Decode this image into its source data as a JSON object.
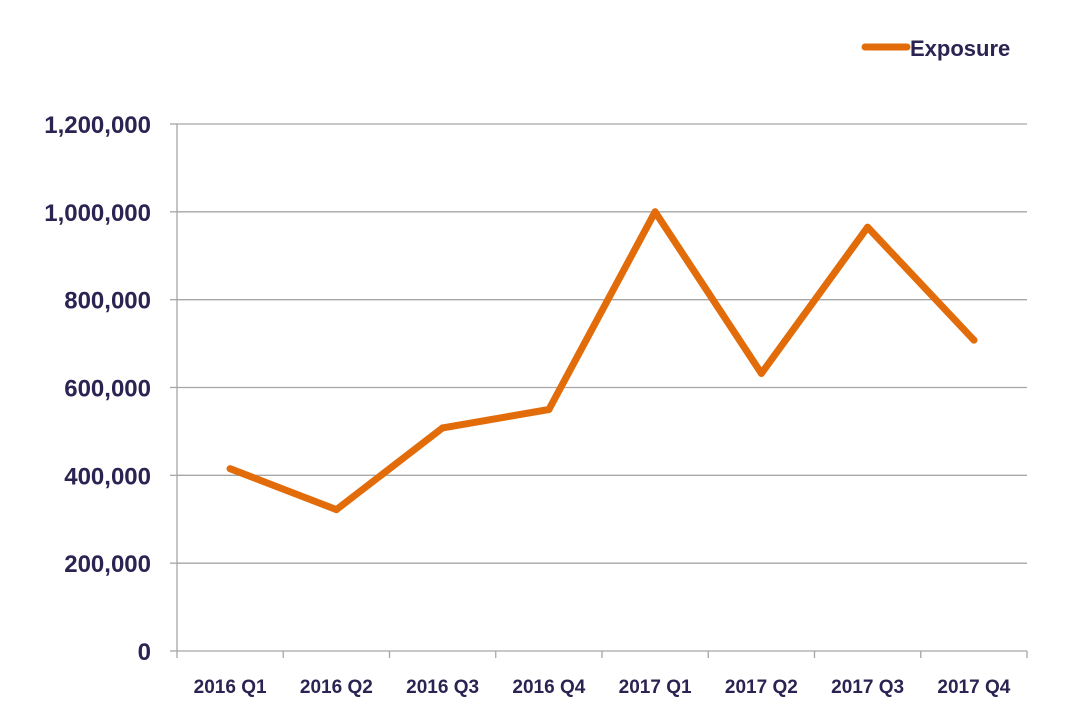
{
  "chart_data": {
    "type": "line",
    "title": "",
    "xlabel": "",
    "ylabel": "",
    "categories": [
      "2016 Q1",
      "2016 Q2",
      "2016 Q3",
      "2016 Q4",
      "2017 Q1",
      "2017 Q2",
      "2017 Q3",
      "2017 Q4"
    ],
    "series": [
      {
        "name": "Exposure",
        "values": [
          415000,
          322000,
          508000,
          550000,
          1000000,
          632000,
          965000,
          708000
        ],
        "color": "#e36c0a"
      }
    ],
    "ylim": [
      0,
      1200000
    ],
    "yticks": [
      0,
      200000,
      400000,
      600000,
      800000,
      1000000,
      1200000
    ],
    "ytick_labels": [
      "0",
      "200,000",
      "400,000",
      "600,000",
      "800,000",
      "1,000,000",
      "1,200,000"
    ],
    "grid": "horizontal",
    "legend_position": "top-right"
  },
  "colors": {
    "text": "#2b2452",
    "grid": "#a6a6a6",
    "axis": "#a6a6a6"
  }
}
